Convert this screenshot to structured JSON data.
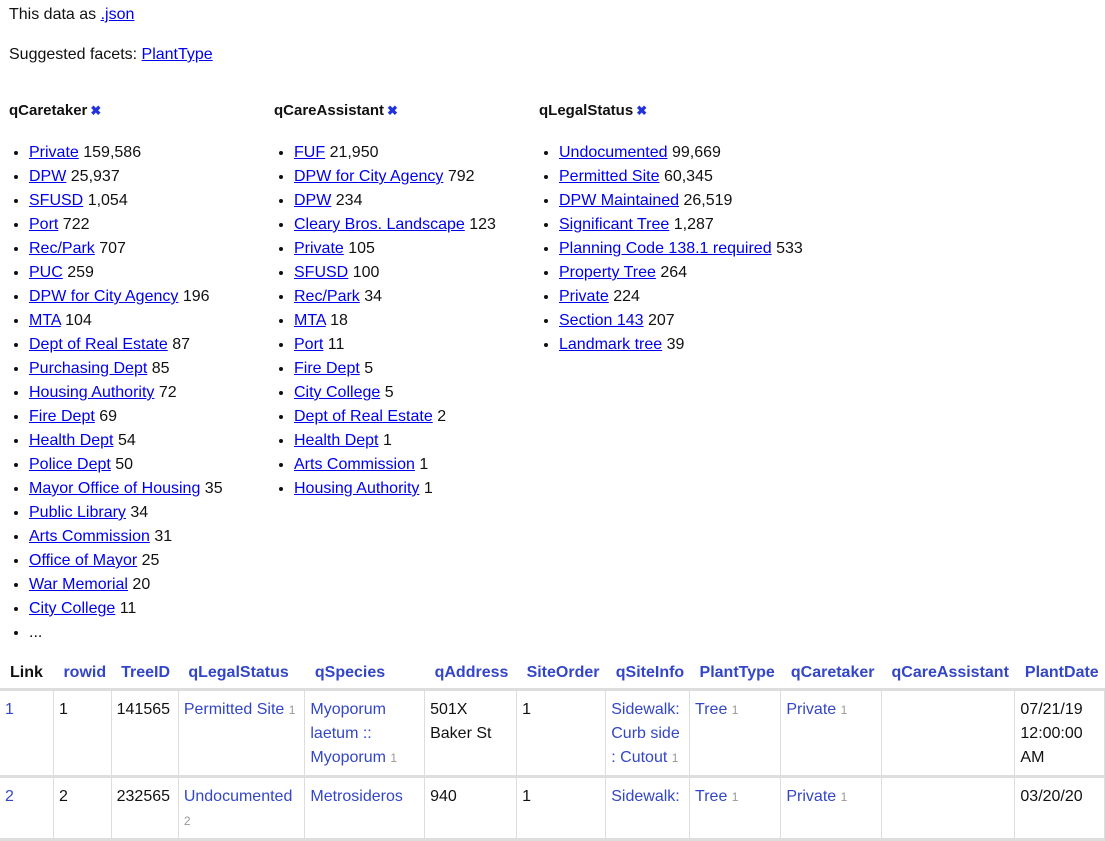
{
  "top": {
    "json_prefix": "This data as ",
    "json_link": ".json",
    "facets_prefix": "Suggested facets: ",
    "suggested": "PlantType"
  },
  "facets": [
    {
      "title": "qCaretaker",
      "items": [
        [
          "Private",
          "159,586"
        ],
        [
          "DPW",
          "25,937"
        ],
        [
          "SFUSD",
          "1,054"
        ],
        [
          "Port",
          "722"
        ],
        [
          "Rec/Park",
          "707"
        ],
        [
          "PUC",
          "259"
        ],
        [
          "DPW for City Agency",
          "196"
        ],
        [
          "MTA",
          "104"
        ],
        [
          "Dept of Real Estate",
          "87"
        ],
        [
          "Purchasing Dept",
          "85"
        ],
        [
          "Housing Authority",
          "72"
        ],
        [
          "Fire Dept",
          "69"
        ],
        [
          "Health Dept",
          "54"
        ],
        [
          "Police Dept",
          "50"
        ],
        [
          "Mayor Office of Housing",
          "35"
        ],
        [
          "Public Library",
          "34"
        ],
        [
          "Arts Commission",
          "31"
        ],
        [
          "Office of Mayor",
          "25"
        ],
        [
          "War Memorial",
          "20"
        ],
        [
          "City College",
          "11"
        ]
      ],
      "more": "..."
    },
    {
      "title": "qCareAssistant",
      "items": [
        [
          "FUF",
          "21,950"
        ],
        [
          "DPW for City Agency",
          "792"
        ],
        [
          "DPW",
          "234"
        ],
        [
          "Cleary Bros. Landscape",
          "123"
        ],
        [
          "Private",
          "105"
        ],
        [
          "SFUSD",
          "100"
        ],
        [
          "Rec/Park",
          "34"
        ],
        [
          "MTA",
          "18"
        ],
        [
          "Port",
          "11"
        ],
        [
          "Fire Dept",
          "5"
        ],
        [
          "City College",
          "5"
        ],
        [
          "Dept of Real Estate",
          "2"
        ],
        [
          "Health Dept",
          "1"
        ],
        [
          "Arts Commission",
          "1"
        ],
        [
          "Housing Authority",
          "1"
        ]
      ]
    },
    {
      "title": "qLegalStatus",
      "items": [
        [
          "Undocumented",
          "99,669"
        ],
        [
          "Permitted Site",
          "60,345"
        ],
        [
          "DPW Maintained",
          "26,519"
        ],
        [
          "Significant Tree",
          "1,287"
        ],
        [
          "Planning Code 138.1 required",
          "533"
        ],
        [
          "Property Tree",
          "264"
        ],
        [
          "Private",
          "224"
        ],
        [
          "Section 143",
          "207"
        ],
        [
          "Landmark tree",
          "39"
        ]
      ]
    }
  ],
  "facet_remove": "✖",
  "table": {
    "columns": [
      "Link",
      "rowid",
      "TreeID",
      "qLegalStatus",
      "qSpecies",
      "qAddress",
      "SiteOrder",
      "qSiteInfo",
      "PlantType",
      "qCaretaker",
      "qCareAssistant",
      "PlantDate"
    ],
    "rows": [
      {
        "link": "1",
        "rowid": "1",
        "treeid": "141565",
        "legal": "Permitted Site",
        "legal_n": "1",
        "species": "Myoporum laetum :: Myoporum",
        "species_n": "1",
        "address": "501X Baker St",
        "siteorder": "1",
        "siteinfo": "Sidewalk: Curb side : Cutout",
        "siteinfo_n": "1",
        "planttype": "Tree",
        "planttype_n": "1",
        "caretaker": "Private",
        "caretaker_n": "1",
        "assistant": "",
        "plantdate": "07/21/19 12:00:00 AM"
      },
      {
        "link": "2",
        "rowid": "2",
        "treeid": "232565",
        "legal": "Undocumented",
        "legal_n": "2",
        "species": "Metrosideros",
        "species_n": "",
        "address": "940",
        "siteorder": "1",
        "siteinfo": "Sidewalk:",
        "siteinfo_n": "",
        "planttype": "Tree",
        "planttype_n": "1",
        "caretaker": "Private",
        "caretaker_n": "1",
        "assistant": "",
        "plantdate": "03/20/20"
      }
    ]
  },
  "colors": {
    "facet_link": "#0000ee",
    "table_link": "#3346c7",
    "count": "#999999"
  }
}
